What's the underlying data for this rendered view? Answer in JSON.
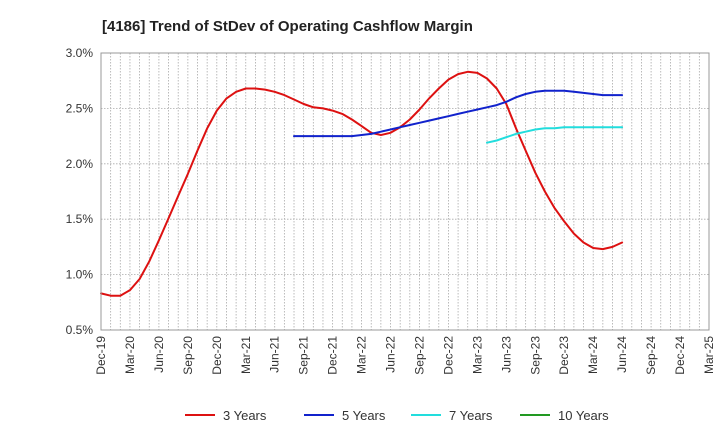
{
  "chart_data": {
    "type": "line",
    "title": "[4186]  Trend of StDev of Operating Cashflow Margin",
    "xlabel": "",
    "ylabel": "",
    "ylim": [
      0.5,
      3.0
    ],
    "y_ticks": [
      "0.5%",
      "1.0%",
      "1.5%",
      "2.0%",
      "2.5%",
      "3.0%"
    ],
    "y_tick_values": [
      0.5,
      1.0,
      1.5,
      2.0,
      2.5,
      3.0
    ],
    "x_ticks": [
      "Dec-19",
      "Mar-20",
      "Jun-20",
      "Sep-20",
      "Dec-20",
      "Mar-21",
      "Jun-21",
      "Sep-21",
      "Dec-21",
      "Mar-22",
      "Jun-22",
      "Sep-22",
      "Dec-22",
      "Mar-23",
      "Jun-23",
      "Sep-23",
      "Dec-23",
      "Mar-24",
      "Jun-24",
      "Sep-24",
      "Dec-24",
      "Mar-25"
    ],
    "grid": true,
    "legend_position": "bottom",
    "series": [
      {
        "name": "3 Years",
        "color": "#dd1111",
        "values": [
          0.83,
          0.81,
          0.81,
          0.86,
          0.96,
          1.12,
          1.31,
          1.51,
          1.71,
          1.91,
          2.12,
          2.32,
          2.48,
          2.59,
          2.65,
          2.68,
          2.68,
          2.67,
          2.65,
          2.62,
          2.58,
          2.54,
          2.51,
          2.5,
          2.48,
          2.45,
          2.4,
          2.34,
          2.28,
          2.26,
          2.28,
          2.33,
          2.4,
          2.49,
          2.59,
          2.68,
          2.76,
          2.81,
          2.83,
          2.82,
          2.77,
          2.68,
          2.54,
          2.32,
          2.12,
          1.92,
          1.75,
          1.6,
          1.48,
          1.37,
          1.29,
          1.24,
          1.23,
          1.25,
          1.29
        ]
      },
      {
        "name": "5 Years",
        "color": "#1122cc",
        "values": [
          null,
          null,
          null,
          null,
          null,
          null,
          null,
          null,
          null,
          null,
          null,
          null,
          null,
          null,
          null,
          null,
          null,
          null,
          null,
          null,
          2.25,
          2.25,
          2.25,
          2.25,
          2.25,
          2.25,
          2.25,
          2.26,
          2.27,
          2.29,
          2.31,
          2.33,
          2.35,
          2.37,
          2.39,
          2.41,
          2.43,
          2.45,
          2.47,
          2.49,
          2.51,
          2.53,
          2.56,
          2.6,
          2.63,
          2.65,
          2.66,
          2.66,
          2.66,
          2.65,
          2.64,
          2.63,
          2.62,
          2.62,
          2.62
        ]
      },
      {
        "name": "7 Years",
        "color": "#22dddd",
        "values": [
          null,
          null,
          null,
          null,
          null,
          null,
          null,
          null,
          null,
          null,
          null,
          null,
          null,
          null,
          null,
          null,
          null,
          null,
          null,
          null,
          null,
          null,
          null,
          null,
          null,
          null,
          null,
          null,
          null,
          null,
          null,
          null,
          null,
          null,
          null,
          null,
          null,
          null,
          null,
          null,
          2.19,
          2.21,
          2.24,
          2.27,
          2.29,
          2.31,
          2.32,
          2.32,
          2.33,
          2.33,
          2.33,
          2.33,
          2.33,
          2.33,
          2.33
        ]
      },
      {
        "name": "10 Years",
        "color": "#229922",
        "values": []
      }
    ]
  }
}
